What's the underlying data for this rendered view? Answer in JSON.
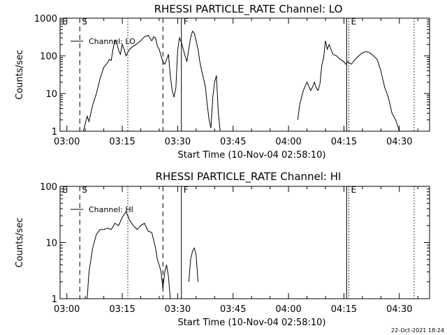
{
  "stamp": "22-Oct-2021 18:24",
  "chart_data": [
    {
      "type": "line",
      "title": "RHESSI PARTICLE_RATE Channel: LO",
      "xlabel": "Start Time (10-Nov-04 02:58:10)",
      "ylabel": "Counts/sec",
      "yscale": "log",
      "xlim": [
        "02:58:10",
        "04:38:10"
      ],
      "ylim": [
        1,
        1000
      ],
      "x_ticks": [
        "03:00",
        "03:15",
        "03:30",
        "03:45",
        "04:00",
        "04:15",
        "04:30"
      ],
      "y_ticks": [
        "1",
        "10",
        "100",
        "1000"
      ],
      "legend": {
        "placement": "top-left",
        "label": "Channel: LO"
      },
      "markers": [
        {
          "label": "E",
          "time": "02:58:10",
          "style": "none"
        },
        {
          "label": "S",
          "time": "03:03:30",
          "style": "dashed"
        },
        {
          "label": "",
          "time": "03:16:30",
          "style": "dotted"
        },
        {
          "label": "",
          "time": "03:26:00",
          "style": "dashed"
        },
        {
          "label": "F",
          "time": "03:31:00",
          "style": "solid"
        },
        {
          "label": "",
          "time": "04:15:45",
          "style": "solid"
        },
        {
          "label": "E",
          "time": "04:16:20",
          "style": "dotted"
        },
        {
          "label": "",
          "time": "04:34:00",
          "style": "dotted"
        }
      ],
      "series": [
        {
          "segments": [
            [
              [
                "03:04:30",
                1
              ],
              [
                "03:05:00",
                1.6
              ],
              [
                "03:05:30",
                2.5
              ],
              [
                "03:06:00",
                1.8
              ],
              [
                "03:06:30",
                3
              ],
              [
                "03:07:00",
                5
              ],
              [
                "03:08:00",
                10
              ],
              [
                "03:09:00",
                25
              ],
              [
                "03:10:00",
                50
              ],
              [
                "03:11:00",
                65
              ],
              [
                "03:11:30",
                80
              ],
              [
                "03:12:00",
                75
              ],
              [
                "03:12:30",
                150
              ],
              [
                "03:13:00",
                260
              ],
              [
                "03:13:30",
                220
              ],
              [
                "03:14:00",
                140
              ],
              [
                "03:14:30",
                110
              ],
              [
                "03:15:00",
                200
              ],
              [
                "03:15:30",
                150
              ],
              [
                "03:16:00",
                100
              ],
              [
                "03:17:00",
                150
              ],
              [
                "03:18:00",
                180
              ],
              [
                "03:19:00",
                210
              ],
              [
                "03:20:00",
                250
              ],
              [
                "03:21:00",
                320
              ],
              [
                "03:22:00",
                350
              ],
              [
                "03:23:00",
                250
              ],
              [
                "03:23:30",
                320
              ],
              [
                "03:24:00",
                300
              ],
              [
                "03:24:30",
                180
              ],
              [
                "03:25:00",
                150
              ],
              [
                "03:25:30",
                100
              ],
              [
                "03:26:00",
                70
              ],
              [
                "03:26:30",
                60
              ],
              [
                "03:27:00",
                80
              ],
              [
                "03:27:30",
                110
              ],
              [
                "03:28:00",
                30
              ],
              [
                "03:28:30",
                12
              ],
              [
                "03:29:00",
                8
              ],
              [
                "03:29:30",
                14
              ],
              [
                "03:30:00",
                140
              ],
              [
                "03:30:30",
                300
              ],
              [
                "03:31:00",
                230
              ],
              [
                "03:32:00",
                100
              ],
              [
                "03:32:30",
                70
              ],
              [
                "03:33:00",
                150
              ],
              [
                "03:33:30",
                300
              ],
              [
                "03:34:00",
                450
              ],
              [
                "03:34:30",
                400
              ],
              [
                "03:35:00",
                250
              ],
              [
                "03:35:30",
                150
              ],
              [
                "03:36:00",
                70
              ],
              [
                "03:36:30",
                40
              ],
              [
                "03:37:00",
                25
              ],
              [
                "03:37:30",
                15
              ],
              [
                "03:38:00",
                5
              ],
              [
                "03:38:30",
                2
              ],
              [
                "03:39:00",
                1.2
              ],
              [
                "03:39:30",
                8
              ],
              [
                "03:40:00",
                20
              ],
              [
                "03:40:30",
                30
              ],
              [
                "03:41:00",
                3
              ],
              [
                "03:41:30",
                1
              ]
            ],
            [
              [
                "04:02:30",
                2
              ],
              [
                "04:03:00",
                5
              ],
              [
                "04:04:00",
                12
              ],
              [
                "04:05:00",
                20
              ],
              [
                "04:06:00",
                12
              ],
              [
                "04:06:30",
                15
              ],
              [
                "04:07:00",
                20
              ],
              [
                "04:07:30",
                14
              ],
              [
                "04:08:00",
                12
              ],
              [
                "04:08:30",
                18
              ],
              [
                "04:09:00",
                55
              ],
              [
                "04:09:30",
                90
              ],
              [
                "04:10:00",
                250
              ],
              [
                "04:10:30",
                150
              ],
              [
                "04:11:00",
                200
              ],
              [
                "04:12:00",
                110
              ],
              [
                "04:13:00",
                100
              ],
              [
                "04:14:00",
                80
              ],
              [
                "04:15:00",
                70
              ],
              [
                "04:15:30",
                60
              ],
              [
                "04:16:00",
                70
              ],
              [
                "04:17:00",
                60
              ],
              [
                "04:18:00",
                80
              ],
              [
                "04:19:00",
                100
              ],
              [
                "04:20:00",
                120
              ],
              [
                "04:21:00",
                130
              ],
              [
                "04:22:00",
                120
              ],
              [
                "04:23:00",
                100
              ],
              [
                "04:24:00",
                80
              ],
              [
                "04:25:00",
                40
              ],
              [
                "04:26:00",
                15
              ],
              [
                "04:27:00",
                8
              ],
              [
                "04:27:30",
                5
              ],
              [
                "04:28:00",
                3
              ],
              [
                "04:29:00",
                2
              ],
              [
                "04:30:00",
                1
              ]
            ]
          ]
        }
      ]
    },
    {
      "type": "line",
      "title": "RHESSI PARTICLE_RATE Channel: HI",
      "xlabel": "Start Time (10-Nov-04 02:58:10)",
      "ylabel": "Counts/sec",
      "yscale": "log",
      "xlim": [
        "02:58:10",
        "04:38:10"
      ],
      "ylim": [
        1,
        100
      ],
      "x_ticks": [
        "03:00",
        "03:15",
        "03:30",
        "03:45",
        "04:00",
        "04:15",
        "04:30"
      ],
      "y_ticks": [
        "1",
        "10",
        "100"
      ],
      "legend": {
        "placement": "top-left",
        "label": "Channel: HI"
      },
      "markers": [
        {
          "label": "E",
          "time": "02:58:10",
          "style": "none"
        },
        {
          "label": "S",
          "time": "03:03:30",
          "style": "dashed"
        },
        {
          "label": "",
          "time": "03:16:30",
          "style": "dotted"
        },
        {
          "label": "",
          "time": "03:26:00",
          "style": "dashed"
        },
        {
          "label": "F",
          "time": "03:31:00",
          "style": "solid"
        },
        {
          "label": "",
          "time": "04:15:45",
          "style": "solid"
        },
        {
          "label": "E",
          "time": "04:16:20",
          "style": "dotted"
        },
        {
          "label": "",
          "time": "04:34:00",
          "style": "dotted"
        }
      ],
      "series": [
        {
          "segments": [
            [
              [
                "03:05:30",
                1
              ],
              [
                "03:06:00",
                3
              ],
              [
                "03:07:00",
                8
              ],
              [
                "03:08:00",
                14
              ],
              [
                "03:09:00",
                17
              ],
              [
                "03:10:00",
                17
              ],
              [
                "03:11:00",
                18
              ],
              [
                "03:12:00",
                17
              ],
              [
                "03:13:00",
                22
              ],
              [
                "03:14:00",
                20
              ],
              [
                "03:15:00",
                28
              ],
              [
                "03:16:00",
                35
              ],
              [
                "03:16:30",
                30
              ],
              [
                "03:17:00",
                25
              ],
              [
                "03:18:00",
                20
              ],
              [
                "03:19:00",
                17
              ],
              [
                "03:20:00",
                20
              ],
              [
                "03:21:00",
                22
              ],
              [
                "03:22:00",
                16
              ],
              [
                "03:23:00",
                15
              ],
              [
                "03:24:00",
                8
              ],
              [
                "03:24:30",
                5
              ],
              [
                "03:25:00",
                4
              ],
              [
                "03:25:30",
                3
              ],
              [
                "03:26:00",
                1.5
              ],
              [
                "03:26:30",
                3
              ],
              [
                "03:27:00",
                4
              ],
              [
                "03:27:30",
                2.5
              ],
              [
                "03:28:00",
                1
              ]
            ],
            [
              [
                "03:33:00",
                2
              ],
              [
                "03:33:30",
                5
              ],
              [
                "03:34:00",
                7
              ],
              [
                "03:34:30",
                8
              ],
              [
                "03:35:00",
                6
              ],
              [
                "03:35:30",
                2
              ]
            ]
          ]
        }
      ]
    }
  ]
}
